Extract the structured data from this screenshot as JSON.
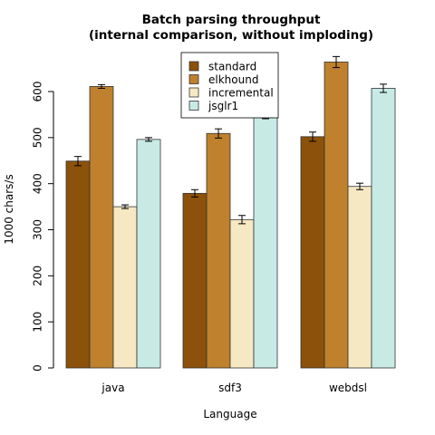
{
  "chart_data": {
    "type": "bar",
    "title": "Batch parsing throughput",
    "subtitle": "(internal comparison, without imploding)",
    "xlabel": "Language",
    "ylabel": "1000 chars/s",
    "ylim": [
      0,
      700
    ],
    "yticks": [
      0,
      100,
      200,
      300,
      400,
      500,
      600
    ],
    "categories": [
      "java",
      "sdf3",
      "webdsl"
    ],
    "legend_position": "top-center",
    "grid": false,
    "error_bars": true,
    "series": [
      {
        "name": "standard",
        "color": "#8c510a",
        "values": [
          449,
          379,
          502
        ],
        "errors": [
          10,
          8,
          10
        ]
      },
      {
        "name": "elkhound",
        "color": "#bf812d",
        "values": [
          611,
          509,
          664
        ],
        "errors": [
          4,
          10,
          12
        ]
      },
      {
        "name": "incremental",
        "color": "#f6e8c3",
        "values": [
          350,
          322,
          394
        ],
        "errors": [
          4,
          9,
          7
        ]
      },
      {
        "name": "jsglr1",
        "color": "#c7eae5",
        "values": [
          496,
          550,
          607
        ],
        "errors": [
          4,
          9,
          9
        ]
      }
    ]
  }
}
